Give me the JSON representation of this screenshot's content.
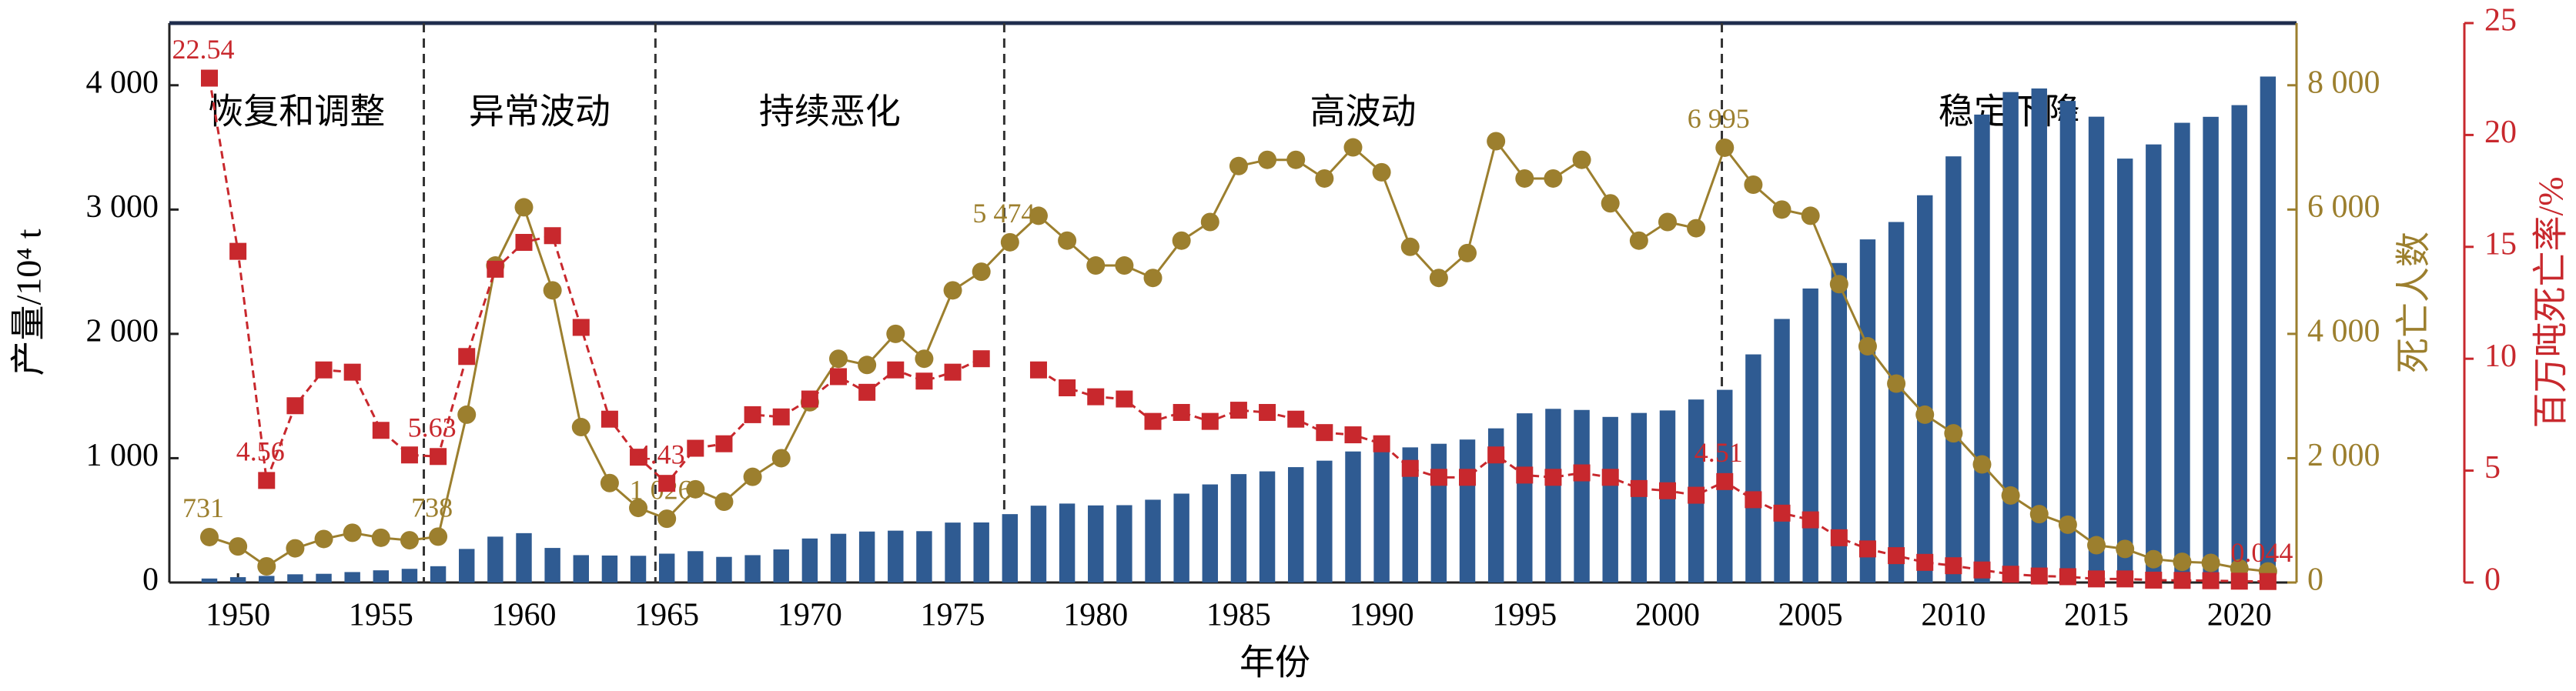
{
  "chart_data": {
    "type": "combo",
    "x_label": "年份",
    "y_label": "产量/10⁴ t",
    "y2_label": "死亡人数",
    "y3_label": "百万吨死亡率/%",
    "x": [
      1949,
      1950,
      1951,
      1952,
      1953,
      1954,
      1955,
      1956,
      1957,
      1958,
      1959,
      1960,
      1961,
      1962,
      1963,
      1964,
      1965,
      1966,
      1967,
      1968,
      1969,
      1970,
      1971,
      1972,
      1973,
      1974,
      1975,
      1976,
      1977,
      1978,
      1979,
      1980,
      1981,
      1982,
      1983,
      1984,
      1985,
      1986,
      1987,
      1988,
      1989,
      1990,
      1991,
      1992,
      1993,
      1994,
      1995,
      1996,
      1997,
      1998,
      1999,
      2000,
      2001,
      2002,
      2003,
      2004,
      2005,
      2006,
      2007,
      2008,
      2009,
      2010,
      2011,
      2012,
      2013,
      2014,
      2015,
      2016,
      2017,
      2018,
      2019,
      2020,
      2021
    ],
    "xlim": [
      1947.6,
      2022
    ],
    "xticks": [
      1950,
      1955,
      1960,
      1965,
      1970,
      1975,
      1980,
      1985,
      1990,
      1995,
      2000,
      2005,
      2010,
      2015,
      2020
    ],
    "ylim": [
      0,
      4500
    ],
    "yticks": [
      0,
      {
        "value": 1000,
        "label": "1 000"
      },
      {
        "value": 2000,
        "label": "2 000"
      },
      {
        "value": 3000,
        "label": "3 000"
      },
      {
        "value": 4000,
        "label": "4 000"
      }
    ],
    "y2lim": [
      0,
      9000
    ],
    "y2ticks": [
      0,
      {
        "value": 2000,
        "label": "2 000"
      },
      {
        "value": 4000,
        "label": "4 000"
      },
      {
        "value": 6000,
        "label": "6 000"
      },
      {
        "value": 8000,
        "label": "8 000"
      }
    ],
    "y3lim": [
      0,
      25
    ],
    "y3ticks": [
      0,
      5,
      10,
      15,
      20,
      25
    ],
    "periods": [
      "恢复和调整",
      "异常波动",
      "持续恶化",
      "高波动",
      "稳定下降"
    ],
    "period_boundaries": [
      1956.5,
      1964.6,
      1976.8,
      2001.9
    ],
    "series": [
      {
        "type": "bar",
        "axis": "y",
        "color": "#2f5b92",
        "values": [
          32,
          43,
          53,
          66,
          70,
          84,
          98,
          110,
          131,
          270,
          369,
          397,
          278,
          220,
          217,
          215,
          232,
          252,
          206,
          220,
          266,
          354,
          392,
          410,
          417,
          413,
          482,
          483,
          550,
          618,
          635,
          620,
          622,
          666,
          715,
          789,
          872,
          894,
          928,
          980,
          1054,
          1080,
          1087,
          1116,
          1150,
          1240,
          1361,
          1397,
          1388,
          1332,
          1364,
          1384,
          1472,
          1550,
          1835,
          2120,
          2365,
          2570,
          2760,
          2900,
          3115,
          3428,
          3764,
          3945,
          3974,
          3874,
          3747,
          3410,
          3524,
          3698,
          3746,
          3840,
          4070
        ]
      },
      {
        "type": "line",
        "axis": "y2",
        "color": "#9c7f2e",
        "marker": "circle",
        "dash": false,
        "values": [
          731,
          580,
          260,
          550,
          700,
          800,
          720,
          680,
          738,
          2700,
          5100,
          6036,
          4700,
          2500,
          1600,
          1200,
          1026,
          1500,
          1300,
          1700,
          2000,
          2900,
          3600,
          3500,
          4000,
          3600,
          4700,
          5000,
          5474,
          5900,
          5500,
          5100,
          5100,
          4900,
          5500,
          5800,
          6700,
          6800,
          6800,
          6500,
          7000,
          6600,
          5400,
          4900,
          5300,
          7100,
          6500,
          6500,
          6800,
          6100,
          5500,
          5800,
          5700,
          6995,
          6400,
          6000,
          5900,
          4800,
          3800,
          3200,
          2700,
          2400,
          1900,
          1400,
          1100,
          930,
          600,
          540,
          375,
          333,
          316,
          228,
          178
        ],
        "value_labels": [
          "731",
          null,
          null,
          null,
          null,
          null,
          null,
          null,
          "738",
          null,
          null,
          null,
          null,
          null,
          null,
          null,
          "1 026",
          null,
          null,
          null,
          null,
          null,
          null,
          null,
          null,
          null,
          null,
          null,
          "5 474",
          null,
          null,
          null,
          null,
          null,
          null,
          null,
          null,
          null,
          null,
          null,
          null,
          null,
          null,
          null,
          null,
          null,
          null,
          null,
          null,
          null,
          null,
          null,
          null,
          "6 995",
          null,
          null,
          null,
          null,
          null,
          null,
          null,
          null,
          null,
          null,
          null,
          null,
          null,
          null,
          null,
          null,
          null,
          null,
          null
        ]
      },
      {
        "type": "line",
        "axis": "y3",
        "color": "#c8282d",
        "marker": "square",
        "dash": true,
        "values": [
          22.54,
          14.8,
          4.56,
          7.9,
          9.5,
          9.4,
          6.8,
          5.7,
          5.63,
          10.1,
          14.0,
          15.2,
          15.5,
          11.4,
          7.3,
          5.6,
          4.43,
          6.0,
          6.2,
          7.5,
          7.4,
          8.2,
          9.2,
          8.5,
          9.5,
          9.0,
          9.4,
          10.0,
          null,
          9.5,
          8.7,
          8.3,
          8.2,
          7.2,
          7.6,
          7.2,
          7.7,
          7.6,
          7.3,
          6.7,
          6.6,
          6.2,
          5.1,
          4.7,
          4.7,
          5.7,
          4.8,
          4.7,
          4.9,
          4.7,
          4.2,
          4.1,
          3.9,
          4.51,
          3.7,
          3.1,
          2.8,
          2.0,
          1.5,
          1.2,
          0.9,
          0.75,
          0.56,
          0.37,
          0.29,
          0.26,
          0.16,
          0.16,
          0.106,
          0.093,
          0.083,
          0.059,
          0.044
        ],
        "value_labels": [
          "22.54",
          null,
          "4.56",
          null,
          null,
          null,
          null,
          null,
          "5.63",
          null,
          null,
          null,
          null,
          null,
          null,
          null,
          "4.43",
          null,
          null,
          null,
          null,
          null,
          null,
          null,
          null,
          null,
          null,
          null,
          null,
          null,
          null,
          null,
          null,
          null,
          null,
          null,
          null,
          null,
          null,
          null,
          null,
          null,
          null,
          null,
          null,
          null,
          null,
          null,
          null,
          null,
          null,
          null,
          null,
          "4.51",
          null,
          null,
          null,
          null,
          null,
          null,
          null,
          null,
          null,
          null,
          null,
          null,
          null,
          null,
          null,
          null,
          null,
          null,
          "0.044"
        ]
      }
    ]
  }
}
